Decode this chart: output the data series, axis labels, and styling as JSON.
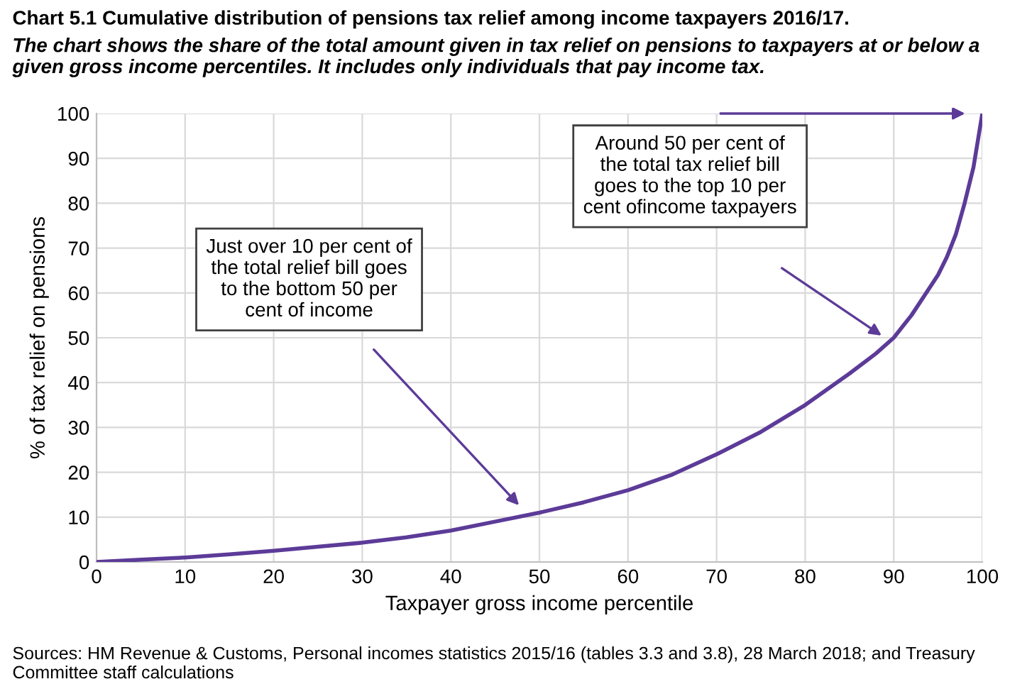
{
  "chart_data": {
    "type": "line",
    "title": "Chart 5.1 Cumulative distribution of pensions tax relief among income taxpayers 2016/17.",
    "subtitle": "The chart shows the share of the total amount given in tax relief on pensions to taxpayers at or below a given gross income percentiles. It includes only individuals that pay income tax.",
    "xlabel": "Taxpayer gross income percentile",
    "ylabel": "% of tax relief on pensions",
    "x": [
      0,
      5,
      10,
      15,
      20,
      25,
      30,
      35,
      40,
      45,
      50,
      55,
      60,
      65,
      70,
      75,
      80,
      85,
      88,
      90,
      92,
      94,
      95,
      96,
      97,
      98,
      99,
      100
    ],
    "series": [
      {
        "color": "#5c3b98",
        "values": [
          0,
          0.5,
          1,
          1.7,
          2.5,
          3.4,
          4.3,
          5.5,
          7,
          9,
          11,
          13.3,
          16,
          19.5,
          24,
          29,
          35,
          42,
          46.5,
          50,
          55,
          61,
          64,
          68,
          73,
          80,
          88,
          100
        ]
      }
    ],
    "xlim": [
      0,
      100
    ],
    "ylim": [
      0,
      100
    ],
    "xticks": [
      0,
      10,
      20,
      30,
      40,
      50,
      60,
      70,
      80,
      90,
      100
    ],
    "yticks": [
      0,
      10,
      20,
      30,
      40,
      50,
      60,
      70,
      80,
      90,
      100
    ],
    "grid": true,
    "legend": false,
    "marker": "none",
    "line_style": "solid",
    "annotations": [
      "Just over 10 per cent of\nthe total relief bill goes\nto the bottom 50 per\ncent of income",
      "Around 50 per cent of\nthe total tax relief bill\ngoes to the top 10 per\ncent ofincome taxpayers",
      "Sources: HM Revenue & Customs, Personal incomes statistics 2015/16 (tables 3.3 and 3.8), 28 March 2018; and Treasury Committee staff calculations"
    ]
  }
}
